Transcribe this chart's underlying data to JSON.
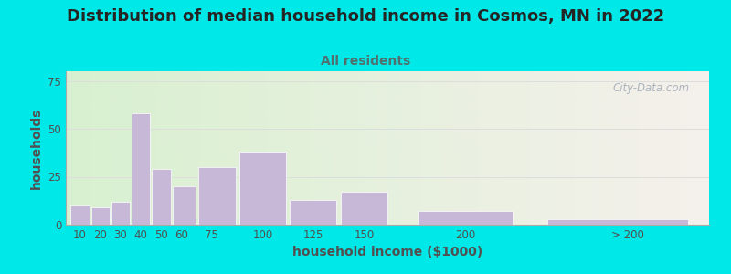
{
  "title": "Distribution of median household income in Cosmos, MN in 2022",
  "subtitle": "All residents",
  "xlabel": "household income ($1000)",
  "ylabel": "households",
  "bar_values": [
    10,
    9,
    12,
    58,
    29,
    20,
    30,
    38,
    13,
    17,
    7,
    3
  ],
  "bar_lefts": [
    5,
    15,
    25,
    35,
    45,
    55,
    67.5,
    87.5,
    112.5,
    137.5,
    175,
    237.5
  ],
  "bar_widths": [
    10,
    10,
    10,
    10,
    10,
    12.5,
    20,
    25,
    25,
    25,
    50,
    75
  ],
  "bar_color": "#c8b8d8",
  "background_outer": "#00e8e8",
  "background_inner_left": "#d8f0d0",
  "background_inner_right": "#f5f0ec",
  "ylim": [
    0,
    80
  ],
  "yticks": [
    0,
    25,
    50,
    75
  ],
  "xtick_positions": [
    10,
    20,
    30,
    40,
    50,
    60,
    75,
    100,
    125,
    150,
    200,
    280
  ],
  "xtick_labels": [
    "10",
    "20",
    "30",
    "40",
    "50",
    "60",
    "75",
    "100",
    "125",
    "150",
    "200",
    "> 200"
  ],
  "xlim_left": 3,
  "xlim_right": 320,
  "title_fontsize": 13,
  "subtitle_fontsize": 10,
  "axis_label_fontsize": 10,
  "tick_fontsize": 8.5,
  "watermark_text": "City-Data.com",
  "watermark_color": "#a0aab8",
  "grid_color": "#dddddd",
  "title_color": "#252525",
  "subtitle_color": "#507070",
  "ylabel_color": "#505050",
  "xlabel_color": "#505050"
}
